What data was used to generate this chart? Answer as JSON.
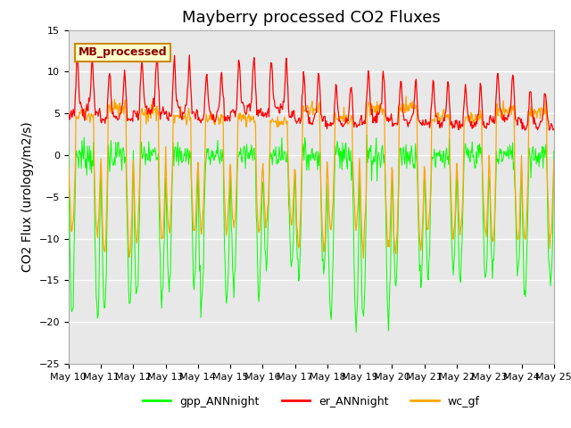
{
  "title": "Mayberry processed CO2 Fluxes",
  "ylabel": "CO2 Flux (urology/m2/s)",
  "ylim": [
    -25,
    15
  ],
  "yticks": [
    -25,
    -20,
    -15,
    -10,
    -5,
    0,
    5,
    10,
    15
  ],
  "xtick_labels": [
    "May 10",
    "May 11",
    "May 12",
    "May 13",
    "May 14",
    "May 15",
    "May 16",
    "May 17",
    "May 18",
    "May 19",
    "May 20",
    "May 21",
    "May 22",
    "May 23",
    "May 24",
    "May 25"
  ],
  "colors": {
    "gpp_ANNnight": "#00FF00",
    "er_ANNnight": "#FF0000",
    "wc_gf": "#FFA500"
  },
  "legend_box_facecolor": "#FFFFCC",
  "legend_box_edgecolor": "#CC8800",
  "legend_text_color": "#880000",
  "legend_label": "MB_processed",
  "bg_color": "#E8E8E8",
  "title_fontsize": 13,
  "axis_fontsize": 10,
  "tick_fontsize": 8,
  "n_days": 15,
  "n_per_day": 48
}
